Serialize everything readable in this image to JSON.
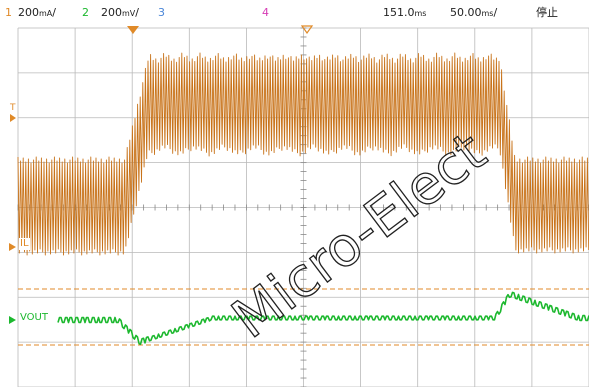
{
  "status_bar": {
    "ch1_num": "1",
    "ch1_scale_value": "200",
    "ch1_scale_unit": "mA",
    "ch2_num": "2",
    "ch2_scale_value": "200",
    "ch2_scale_unit": "mV",
    "ch3_num": "3",
    "ch4_num": "4",
    "trigger_value": "151.0",
    "trigger_unit": "ms",
    "timebase_value": "50.00",
    "timebase_unit": "ms",
    "run_state": "停止"
  },
  "channels": {
    "ch1_label": "IL",
    "ch2_label": "VOUT",
    "trigger_level_marker": "T"
  },
  "watermark": "Micro-Elect",
  "colors": {
    "ch1": "#c8731a",
    "ch2": "#1cb82e",
    "ch3": "#4a86d8",
    "ch4": "#d63bb4",
    "grid": "#b9b9b9",
    "trigger_marker": "#e08a28"
  },
  "icons": [
    "trigger-time-marker-icon",
    "ground-marker-icon"
  ]
}
